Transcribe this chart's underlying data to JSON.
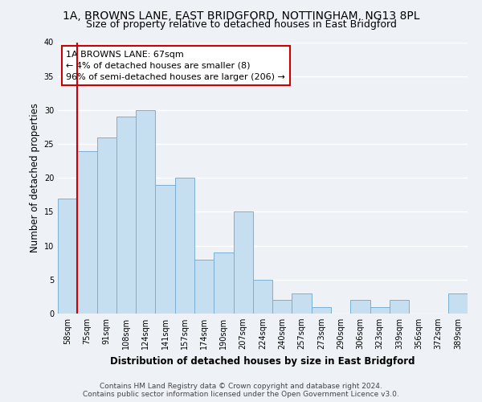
{
  "title": "1A, BROWNS LANE, EAST BRIDGFORD, NOTTINGHAM, NG13 8PL",
  "subtitle": "Size of property relative to detached houses in East Bridgford",
  "xlabel": "Distribution of detached houses by size in East Bridgford",
  "ylabel": "Number of detached properties",
  "bar_labels": [
    "58sqm",
    "75sqm",
    "91sqm",
    "108sqm",
    "124sqm",
    "141sqm",
    "157sqm",
    "174sqm",
    "190sqm",
    "207sqm",
    "224sqm",
    "240sqm",
    "257sqm",
    "273sqm",
    "290sqm",
    "306sqm",
    "323sqm",
    "339sqm",
    "356sqm",
    "372sqm",
    "389sqm"
  ],
  "bar_values": [
    17,
    24,
    26,
    29,
    30,
    19,
    20,
    8,
    9,
    15,
    5,
    2,
    3,
    1,
    0,
    2,
    1,
    2,
    0,
    0,
    3
  ],
  "bar_color": "#c5dff0",
  "bar_edge_color": "#7ab0d4",
  "annotation_title": "1A BROWNS LANE: 67sqm",
  "annotation_line1": "← 4% of detached houses are smaller (8)",
  "annotation_line2": "96% of semi-detached houses are larger (206) →",
  "annotation_box_color": "#ffffff",
  "annotation_border_color": "#cc0000",
  "property_line_x": 1.0,
  "ylim": [
    0,
    40
  ],
  "yticks": [
    0,
    5,
    10,
    15,
    20,
    25,
    30,
    35,
    40
  ],
  "footer_line1": "Contains HM Land Registry data © Crown copyright and database right 2024.",
  "footer_line2": "Contains public sector information licensed under the Open Government Licence v3.0.",
  "bg_color": "#eef2f7",
  "grid_color": "#ffffff",
  "title_fontsize": 10,
  "subtitle_fontsize": 9,
  "axis_label_fontsize": 8.5,
  "tick_fontsize": 7,
  "annotation_fontsize": 8,
  "footer_fontsize": 6.5
}
